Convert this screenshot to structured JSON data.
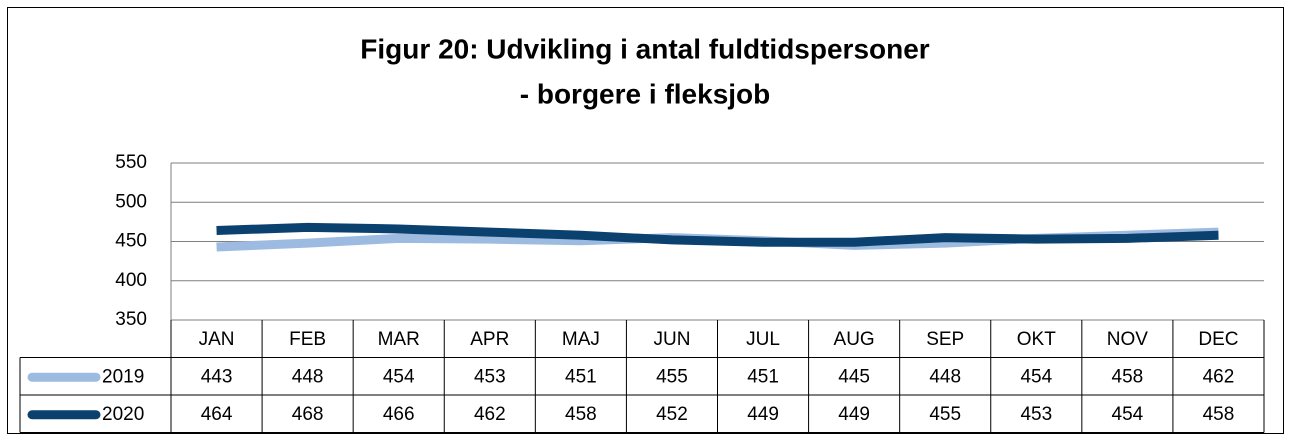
{
  "chart_data": {
    "type": "line",
    "title": "Figur 20: Udvikling i antal fuldtidspersoner",
    "subtitle": "- borgere i fleksjob",
    "categories": [
      "JAN",
      "FEB",
      "MAR",
      "APR",
      "MAJ",
      "JUN",
      "JUL",
      "AUG",
      "SEP",
      "OKT",
      "NOV",
      "DEC"
    ],
    "series": [
      {
        "name": "2019",
        "color": "#9dbbe0",
        "values": [
          443,
          448,
          454,
          453,
          451,
          455,
          451,
          445,
          448,
          454,
          458,
          462
        ]
      },
      {
        "name": "2020",
        "color": "#0b416f",
        "values": [
          464,
          468,
          466,
          462,
          458,
          452,
          449,
          449,
          455,
          453,
          454,
          458
        ]
      }
    ],
    "ylim": [
      350,
      550
    ],
    "yticks": [
      350,
      400,
      450,
      500,
      550
    ],
    "grid": true
  }
}
